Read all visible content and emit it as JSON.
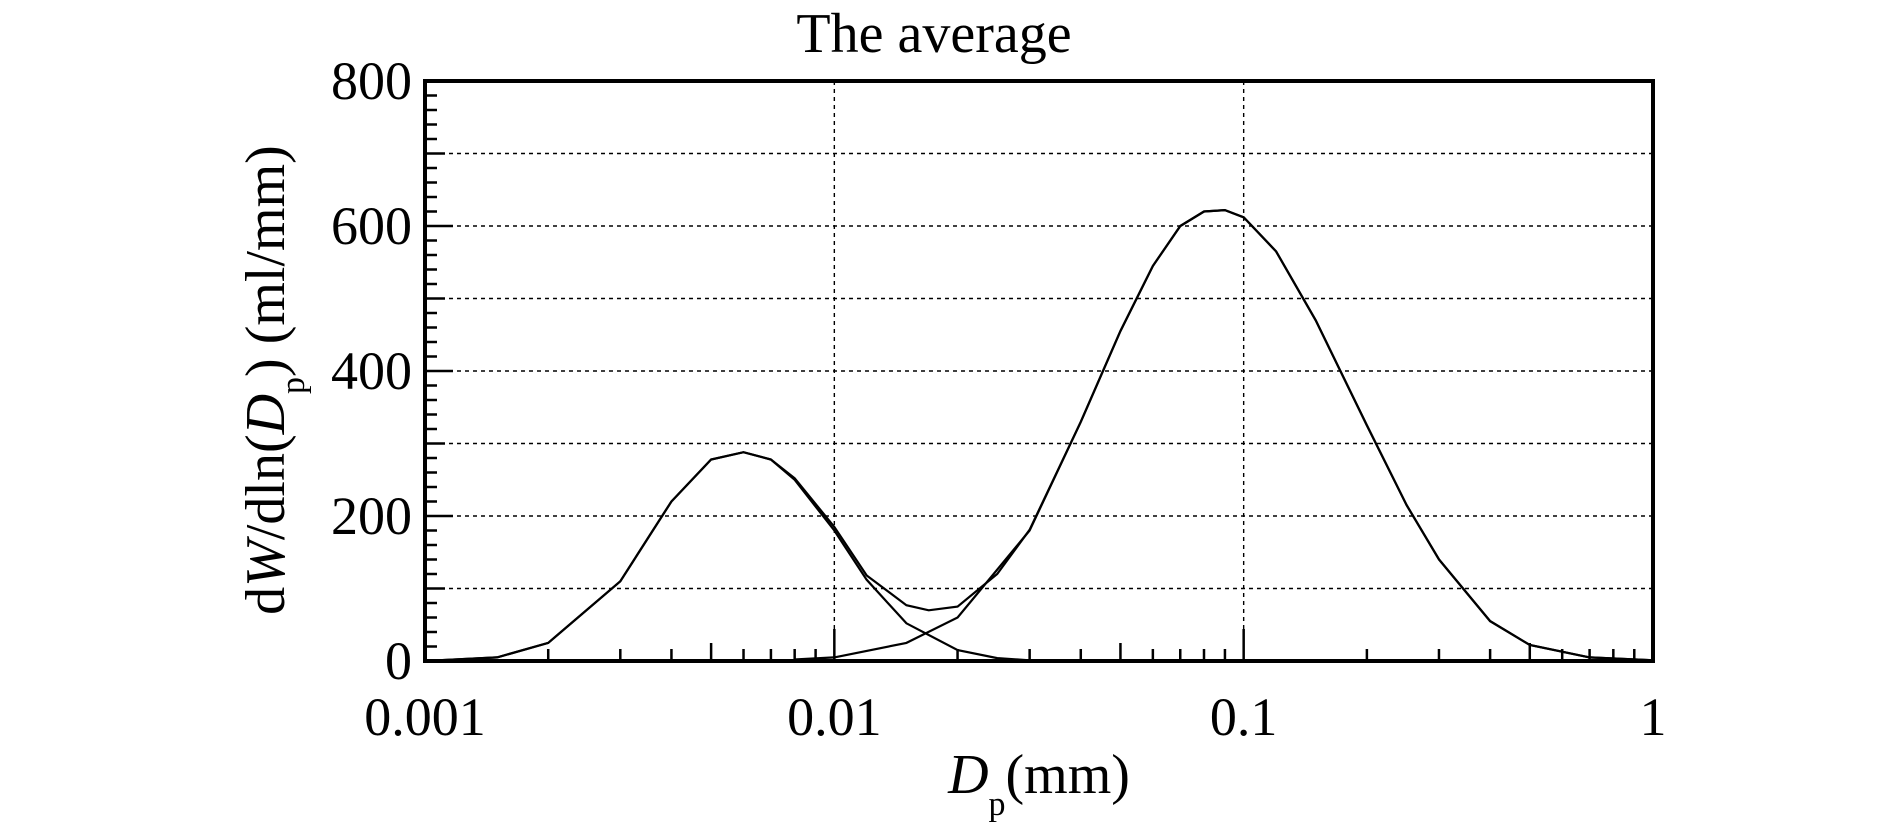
{
  "chart_data": {
    "type": "line",
    "title": "The average",
    "xlabel": {
      "main": "D",
      "sub": "p",
      "unit": "(mm)"
    },
    "ylabel": {
      "prefix": "d",
      "var": "W",
      "mid": "/dln(",
      "var2": "D",
      "sub": "p",
      "suffix": ") (ml/mm)"
    },
    "x_scale": "log",
    "xlim": [
      0.001,
      1
    ],
    "ylim": [
      0,
      800
    ],
    "x_ticks": [
      {
        "value": 0.001,
        "label": "0.001"
      },
      {
        "value": 0.01,
        "label": "0.01"
      },
      {
        "value": 0.1,
        "label": "0.1"
      },
      {
        "value": 1,
        "label": "1"
      }
    ],
    "y_ticks": [
      {
        "value": 0,
        "label": "0"
      },
      {
        "value": 200,
        "label": "200"
      },
      {
        "value": 400,
        "label": "400"
      },
      {
        "value": 600,
        "label": "600"
      },
      {
        "value": 800,
        "label": "800"
      }
    ],
    "grid": true,
    "series": [
      {
        "x": [
          0.001,
          0.0015,
          0.002,
          0.003,
          0.004,
          0.005,
          0.006,
          0.007,
          0.008,
          0.01,
          0.012,
          0.015,
          0.02,
          0.025,
          0.03,
          0.04
        ],
        "y": [
          0,
          5,
          25,
          110,
          220,
          278,
          288,
          278,
          250,
          180,
          112,
          52,
          15,
          4,
          1,
          0
        ]
      },
      {
        "x": [
          0.008,
          0.01,
          0.015,
          0.02,
          0.03,
          0.04,
          0.05,
          0.06,
          0.07,
          0.08,
          0.09,
          0.1,
          0.12,
          0.15,
          0.2,
          0.25,
          0.3,
          0.4,
          0.5,
          0.7,
          1.0
        ],
        "y": [
          2,
          5,
          25,
          60,
          180,
          330,
          455,
          545,
          600,
          620,
          622,
          612,
          565,
          470,
          325,
          215,
          140,
          55,
          22,
          5,
          1
        ]
      },
      {
        "x": [
          0.001,
          0.0015,
          0.002,
          0.003,
          0.004,
          0.005,
          0.006,
          0.007,
          0.008,
          0.01,
          0.012,
          0.015,
          0.017,
          0.02,
          0.025,
          0.03,
          0.04,
          0.05,
          0.06,
          0.07,
          0.08,
          0.09,
          0.1,
          0.12,
          0.15,
          0.2,
          0.25,
          0.3,
          0.4,
          0.5,
          0.7,
          1.0
        ],
        "y": [
          0,
          5,
          25,
          110,
          220,
          278,
          288,
          278,
          252,
          185,
          118,
          77,
          70,
          75,
          120,
          181,
          330,
          455,
          545,
          600,
          620,
          622,
          612,
          565,
          470,
          325,
          215,
          140,
          55,
          22,
          5,
          1
        ]
      }
    ]
  }
}
